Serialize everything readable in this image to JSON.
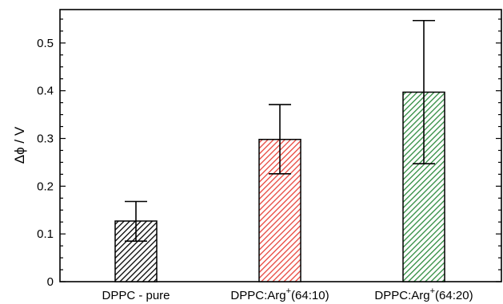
{
  "chart_data": {
    "type": "bar",
    "categories": [
      {
        "label": "DPPC - pure",
        "sup": ""
      },
      {
        "label": "DPPC:Arg",
        "sup": "+",
        "suffix": "(64:10)"
      },
      {
        "label": "DPPC:Arg",
        "sup": "+",
        "suffix": "(64:20)"
      }
    ],
    "values": [
      0.127,
      0.298,
      0.397
    ],
    "error_low": [
      0.085,
      0.226,
      0.247
    ],
    "error_high": [
      0.168,
      0.371,
      0.547
    ],
    "colors": [
      "#000000",
      "#e8443a",
      "#2e8b3e"
    ],
    "ylabel": "Δϕ / V",
    "ylim": [
      0,
      0.57
    ],
    "y_ticks": [
      "0",
      "0.1",
      "0.2",
      "0.3",
      "0.4",
      "0.5"
    ],
    "y_tick_values": [
      0,
      0.1,
      0.2,
      0.3,
      0.4,
      0.5
    ],
    "pattern": "diagonal-hatch",
    "grid": false
  }
}
